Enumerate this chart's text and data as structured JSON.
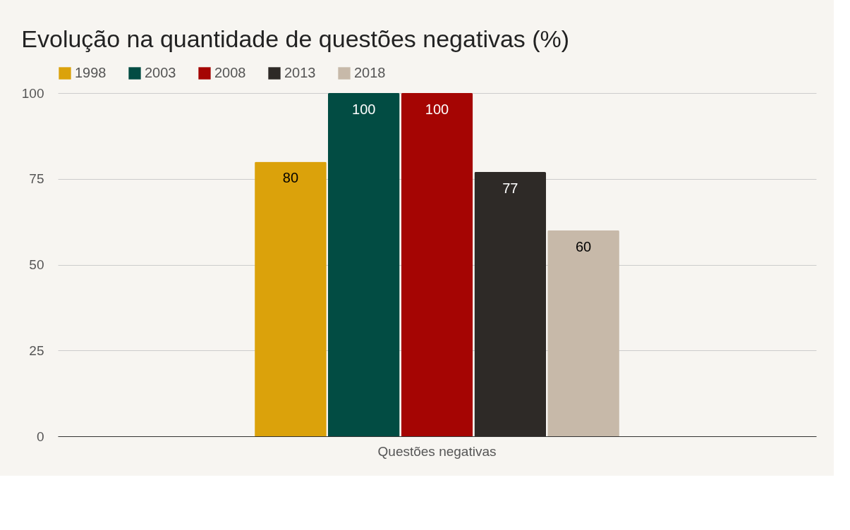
{
  "chart_data": {
    "type": "bar",
    "title": "Evolução na quantidade de questões negativas (%)",
    "categories": [
      "Questões negativas"
    ],
    "series": [
      {
        "name": "1998",
        "color": "#dba20b",
        "values": [
          80
        ]
      },
      {
        "name": "2003",
        "color": "#024c43",
        "values": [
          100
        ]
      },
      {
        "name": "2008",
        "color": "#a50503",
        "values": [
          100
        ]
      },
      {
        "name": "2013",
        "color": "#2e2a27",
        "values": [
          77
        ]
      },
      {
        "name": "2018",
        "color": "#c7b9a9",
        "values": [
          60
        ]
      }
    ],
    "ylim": [
      0,
      100
    ],
    "yticks": [
      0,
      25,
      50,
      75,
      100
    ],
    "grid": "y",
    "legend": "top",
    "data_labels": true
  }
}
